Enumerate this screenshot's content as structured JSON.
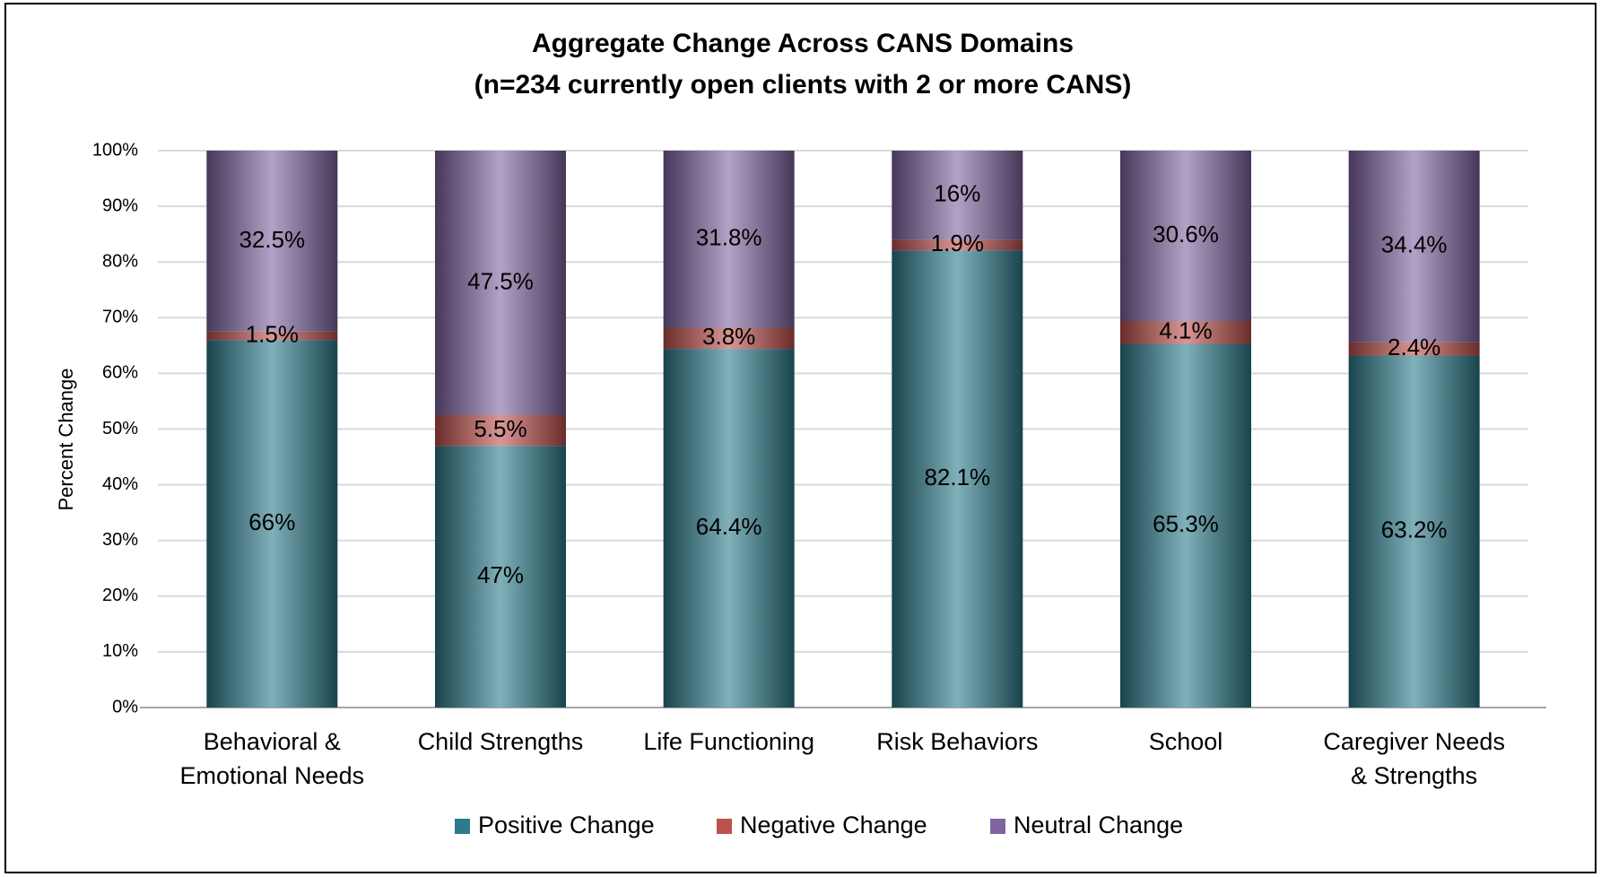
{
  "chart_data": {
    "type": "stacked_bar",
    "title": "Aggregate Change Across CANS Domains",
    "subtitle": "(n=234 currently open clients with 2 or more CANS)",
    "y_label": "Percent Change",
    "categories": [
      "Behavioral &\nEmotional Needs",
      "Child Strengths",
      "Life Functioning",
      "Risk Behaviors",
      "School",
      "Caregiver Needs\n& Strengths"
    ],
    "series": [
      {
        "name": "Positive Change",
        "color": "#2b7b8c",
        "values": [
          66,
          47,
          64.4,
          82.1,
          65.3,
          63.2
        ],
        "value_labels": [
          "66%",
          "47%",
          "64.4%",
          "82.1%",
          "65.3%",
          "63.2%"
        ]
      },
      {
        "name": "Negative Change",
        "color": "#c0504d",
        "values": [
          1.5,
          5.5,
          3.8,
          1.9,
          4.1,
          2.4
        ],
        "value_labels": [
          "1.5%",
          "5.5%",
          "3.8%",
          "1.9%",
          "4.1%",
          "2.4%"
        ]
      },
      {
        "name": "Neutral Change",
        "color": "#8064a2",
        "values": [
          32.5,
          47.5,
          31.8,
          16,
          30.6,
          34.4
        ],
        "value_labels": [
          "32.5%",
          "47.5%",
          "31.8%",
          "16%",
          "30.6%",
          "34.4%"
        ]
      }
    ],
    "ylim": [
      0,
      100
    ],
    "yticks": [
      {
        "value": 0,
        "label": "0%"
      },
      {
        "value": 10,
        "label": "10%"
      },
      {
        "value": 20,
        "label": "20%"
      },
      {
        "value": 30,
        "label": "30%"
      },
      {
        "value": 40,
        "label": "40%"
      },
      {
        "value": 50,
        "label": "50%"
      },
      {
        "value": 60,
        "label": "60%"
      },
      {
        "value": 70,
        "label": "70%"
      },
      {
        "value": 80,
        "label": "80%"
      },
      {
        "value": 90,
        "label": "90%"
      },
      {
        "value": 100,
        "label": "100%"
      }
    ],
    "grid": true,
    "legend": "bottom"
  }
}
